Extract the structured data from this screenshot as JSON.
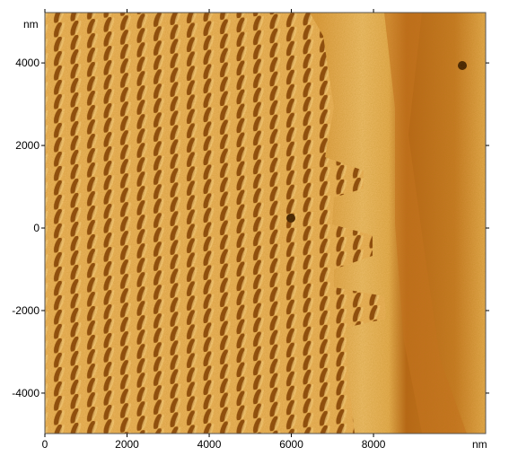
{
  "x_axis": {
    "unit": "nm",
    "range": [
      0,
      10730
    ],
    "ticks": [
      0,
      2000,
      4000,
      6000,
      8000
    ]
  },
  "y_axis": {
    "unit": "nm",
    "range": [
      -4980,
      5220
    ],
    "ticks": [
      -4000,
      -2000,
      0,
      2000,
      4000
    ]
  }
}
